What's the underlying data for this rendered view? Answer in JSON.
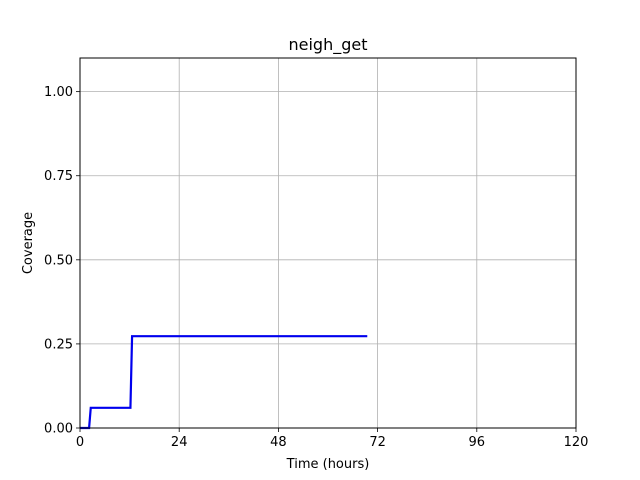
{
  "chart_data": {
    "type": "line",
    "title": "neigh_get",
    "xlabel": "Time (hours)",
    "ylabel": "Coverage",
    "xlim": [
      0,
      120
    ],
    "ylim": [
      0,
      1.1
    ],
    "xticks": [
      0,
      24,
      48,
      72,
      96,
      120
    ],
    "xtick_labels": [
      "0",
      "24",
      "48",
      "72",
      "96",
      "120"
    ],
    "yticks": [
      0,
      0.25,
      0.5,
      0.75,
      1.0
    ],
    "ytick_labels": [
      "0.00",
      "0.25",
      "0.50",
      "0.75",
      "1.00"
    ],
    "grid": true,
    "series": [
      {
        "color": "#0000ee",
        "x": [
          0,
          2.2,
          2.6,
          12.2,
          12.6,
          69.5
        ],
        "y": [
          0,
          0,
          0.06,
          0.06,
          0.273,
          0.273
        ]
      }
    ]
  }
}
